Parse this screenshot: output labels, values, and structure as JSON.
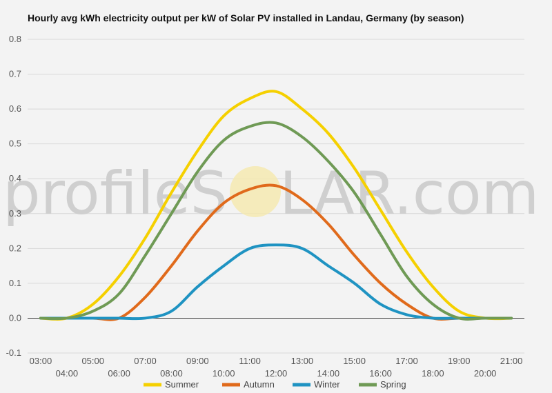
{
  "title": "Hourly avg kWh electricity output per kW of Solar PV installed in Landau, Germany (by season)",
  "watermark": {
    "left": "profileS",
    "right": "LAR.com"
  },
  "chart_data": {
    "type": "line",
    "title": "Hourly avg kWh electricity output per kW of Solar PV installed in Landau, Germany (by season)",
    "xlabel": "",
    "ylabel": "",
    "xlim": [
      2.5,
      21.5
    ],
    "ylim": [
      -0.1,
      0.8
    ],
    "yticks": [
      -0.1,
      0.0,
      0.1,
      0.2,
      0.3,
      0.4,
      0.5,
      0.6,
      0.7,
      0.8
    ],
    "ytick_labels": [
      "-0.1",
      "0.0",
      "0.1",
      "0.2",
      "0.3",
      "0.4",
      "0.5",
      "0.6",
      "0.7",
      "0.8"
    ],
    "xticks": [
      3,
      4,
      5,
      6,
      7,
      8,
      9,
      10,
      11,
      12,
      13,
      14,
      15,
      16,
      17,
      18,
      19,
      20,
      21
    ],
    "xtick_labels": [
      "03:00",
      "04:00",
      "05:00",
      "06:00",
      "07:00",
      "08:00",
      "09:00",
      "10:00",
      "11:00",
      "12:00",
      "13:00",
      "14:00",
      "15:00",
      "16:00",
      "17:00",
      "18:00",
      "19:00",
      "20:00",
      "21:00"
    ],
    "grid": true,
    "legend": "bottom",
    "x": [
      3,
      4,
      5,
      6,
      7,
      8,
      9,
      10,
      11,
      12,
      13,
      14,
      15,
      16,
      17,
      18,
      19,
      20,
      21
    ],
    "series": [
      {
        "name": "Summer",
        "color": "#f5d000",
        "values": [
          0.0,
          0.0,
          0.04,
          0.12,
          0.23,
          0.36,
          0.48,
          0.58,
          0.63,
          0.65,
          0.6,
          0.53,
          0.43,
          0.31,
          0.19,
          0.09,
          0.02,
          0.0,
          0.0
        ]
      },
      {
        "name": "Autumn",
        "color": "#e06a1b",
        "values": [
          0.0,
          0.0,
          0.0,
          0.0,
          0.06,
          0.15,
          0.25,
          0.33,
          0.37,
          0.38,
          0.34,
          0.27,
          0.18,
          0.1,
          0.04,
          0.0,
          0.0,
          0.0,
          0.0
        ]
      },
      {
        "name": "Winter",
        "color": "#1f93c2",
        "values": [
          0.0,
          0.0,
          0.0,
          0.0,
          0.0,
          0.02,
          0.09,
          0.15,
          0.2,
          0.21,
          0.2,
          0.15,
          0.1,
          0.04,
          0.01,
          0.0,
          0.0,
          0.0,
          0.0
        ]
      },
      {
        "name": "Spring",
        "color": "#6f9a55",
        "values": [
          0.0,
          0.0,
          0.02,
          0.07,
          0.18,
          0.3,
          0.42,
          0.51,
          0.55,
          0.56,
          0.52,
          0.45,
          0.36,
          0.24,
          0.12,
          0.04,
          0.0,
          0.0,
          0.0
        ]
      }
    ]
  }
}
